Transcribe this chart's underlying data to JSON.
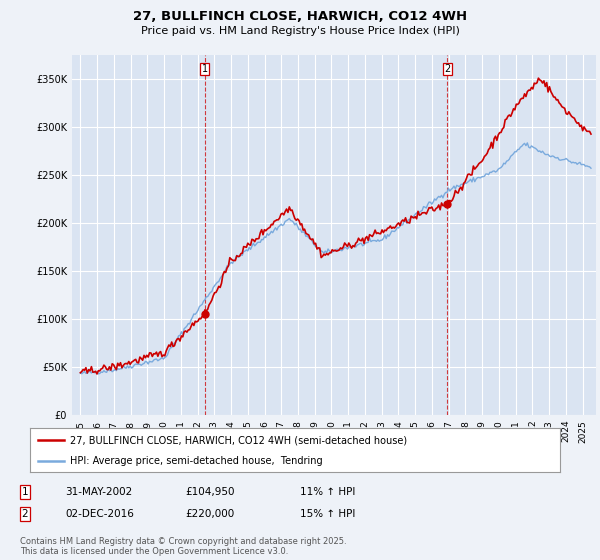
{
  "title": "27, BULLFINCH CLOSE, HARWICH, CO12 4WH",
  "subtitle": "Price paid vs. HM Land Registry's House Price Index (HPI)",
  "ylabel_ticks": [
    "£0",
    "£50K",
    "£100K",
    "£150K",
    "£200K",
    "£250K",
    "£300K",
    "£350K"
  ],
  "ytick_values": [
    0,
    50000,
    100000,
    150000,
    200000,
    250000,
    300000,
    350000
  ],
  "ylim": [
    0,
    375000
  ],
  "xlim_start": 1994.5,
  "xlim_end": 2025.8,
  "background_color": "#eef2f8",
  "plot_bg_color": "#dae4f2",
  "grid_color": "#ffffff",
  "line1_color": "#cc0000",
  "line2_color": "#7aaadd",
  "marker1_date": 2002.42,
  "marker2_date": 2016.92,
  "marker1_value": 104950,
  "marker2_value": 220000,
  "legend1": "27, BULLFINCH CLOSE, HARWICH, CO12 4WH (semi-detached house)",
  "legend2": "HPI: Average price, semi-detached house,  Tendring",
  "ann1_date": "31-MAY-2002",
  "ann1_price": "£104,950",
  "ann1_hpi": "11% ↑ HPI",
  "ann2_date": "02-DEC-2016",
  "ann2_price": "£220,000",
  "ann2_hpi": "15% ↑ HPI",
  "footer": "Contains HM Land Registry data © Crown copyright and database right 2025.\nThis data is licensed under the Open Government Licence v3.0.",
  "title_fontsize": 9.5,
  "subtitle_fontsize": 8.0,
  "axis_fontsize": 7.5,
  "tick_fontsize": 7.0
}
